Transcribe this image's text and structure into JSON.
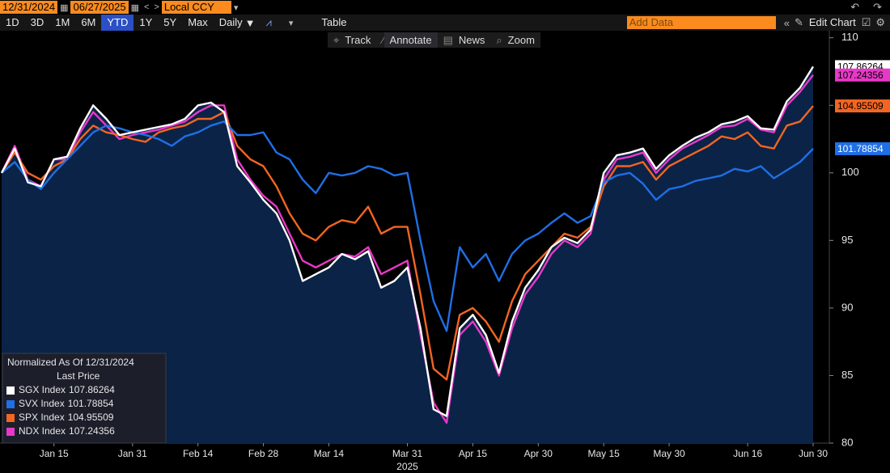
{
  "toolbar": {
    "start_date": "12/31/2024",
    "end_date": "06/27/2025",
    "currency": "Local CCY",
    "periods": [
      "1D",
      "3D",
      "1M",
      "6M",
      "YTD",
      "1Y",
      "5Y",
      "Max"
    ],
    "active_period": "YTD",
    "frequency": "Daily",
    "table": "Table",
    "add_data": "Add Data",
    "edit_chart": "Edit Chart",
    "tools": [
      "Track",
      "Annotate",
      "News",
      "Zoom"
    ],
    "active_tool": "Annotate"
  },
  "chart_data": {
    "type": "line",
    "categories": [
      null,
      null,
      null,
      null,
      "Jan 15",
      null,
      null,
      null,
      null,
      null,
      "Jan 31",
      null,
      null,
      null,
      null,
      "Feb 14",
      null,
      null,
      null,
      null,
      "Feb 28",
      null,
      null,
      null,
      null,
      "Mar 14",
      null,
      null,
      null,
      null,
      null,
      "Mar 31",
      null,
      null,
      null,
      null,
      "Apr 15",
      null,
      null,
      null,
      null,
      "Apr 30",
      null,
      null,
      null,
      null,
      "May 15",
      null,
      null,
      null,
      null,
      "May 30",
      null,
      null,
      null,
      null,
      null,
      "Jun 16",
      null,
      null,
      null,
      null,
      "Jun 30"
    ],
    "year_label": "2025",
    "legend_title": "Normalized As Of 12/31/2024",
    "legend_subtitle": "Last Price",
    "legend": "lower left",
    "area_fill_color": "#0b2346",
    "ylim": [
      80,
      111
    ],
    "yticks": [
      80,
      85,
      90,
      95,
      100,
      105,
      110
    ],
    "series": [
      {
        "name": "SGX Index",
        "color": "#ffffff",
        "label_text": "#000000",
        "values": [
          100,
          101.8,
          99.3,
          99,
          101,
          101.2,
          103.3,
          105,
          104,
          102.8,
          103,
          103.2,
          103.4,
          103.6,
          104,
          105,
          105.2,
          104.5,
          100.5,
          99.3,
          98,
          97,
          95,
          92,
          92.5,
          93,
          94,
          93.6,
          94.2,
          91.5,
          92,
          93,
          88.5,
          82.5,
          82,
          88.5,
          89.5,
          88,
          85.2,
          89,
          91.5,
          92.8,
          94.5,
          95.2,
          94.8,
          95.8,
          100,
          101.3,
          101.5,
          101.8,
          100.3,
          101.3,
          102,
          102.6,
          103,
          103.6,
          103.8,
          104.2,
          103.3,
          103.2,
          105.3,
          106.3,
          107.86264
        ]
      },
      {
        "name": "SVX Index",
        "color": "#1f6fe5",
        "label_text": "#ffffff",
        "values": [
          100,
          100.8,
          99.5,
          98.8,
          100,
          101,
          102,
          103,
          103.5,
          103.3,
          103,
          102.8,
          102.5,
          102,
          102.7,
          103,
          103.5,
          103.8,
          102.8,
          102.8,
          103,
          101.5,
          101,
          99.5,
          98.5,
          100,
          99.8,
          100,
          100.5,
          100.3,
          99.8,
          100,
          95,
          90.5,
          88.3,
          94.5,
          93,
          94,
          92,
          94,
          95,
          95.5,
          96.3,
          97,
          96.3,
          96.8,
          99.3,
          99.8,
          100,
          99.2,
          98,
          98.8,
          99,
          99.4,
          99.6,
          99.8,
          100.3,
          100.1,
          100.5,
          99.6,
          100.2,
          100.8,
          101.78854
        ]
      },
      {
        "name": "SPX Index",
        "color": "#f26522",
        "label_text": "#000000",
        "values": [
          100,
          101.5,
          100,
          99.5,
          100.5,
          101,
          102.5,
          103.5,
          103,
          102.8,
          102.5,
          102.3,
          103,
          103.3,
          103.5,
          104,
          104,
          104.5,
          102,
          101,
          100.5,
          99,
          97,
          95.5,
          95,
          96,
          96.5,
          96.3,
          97.5,
          95.5,
          96,
          96,
          91,
          85.5,
          84.7,
          89.5,
          90,
          89,
          87.5,
          90.5,
          92.5,
          93.5,
          94.5,
          95.5,
          95.2,
          96,
          99,
          100.5,
          100.5,
          100.8,
          99.5,
          100.5,
          101,
          101.5,
          102,
          102.7,
          102.5,
          103,
          102,
          101.8,
          103.5,
          103.8,
          104.95509
        ]
      },
      {
        "name": "NDX Index",
        "color": "#e838c8",
        "label_text": "#000000",
        "values": [
          100,
          102,
          99.5,
          99,
          101,
          101,
          103,
          104.5,
          103.5,
          102.5,
          102.8,
          103,
          103.2,
          103.5,
          103.8,
          104.5,
          105,
          105,
          101,
          99.5,
          98.3,
          97.5,
          95.5,
          93.5,
          93,
          93.5,
          94,
          93.8,
          94.5,
          92.5,
          93,
          93.5,
          88,
          83,
          81.5,
          88,
          89,
          87.5,
          85,
          88.5,
          91,
          92.3,
          94,
          95,
          94.5,
          95.5,
          99.5,
          101,
          101.2,
          101.5,
          100,
          101,
          101.8,
          102.3,
          102.8,
          103.4,
          103.5,
          104,
          103.2,
          103,
          105,
          106,
          107.24356
        ]
      }
    ]
  }
}
